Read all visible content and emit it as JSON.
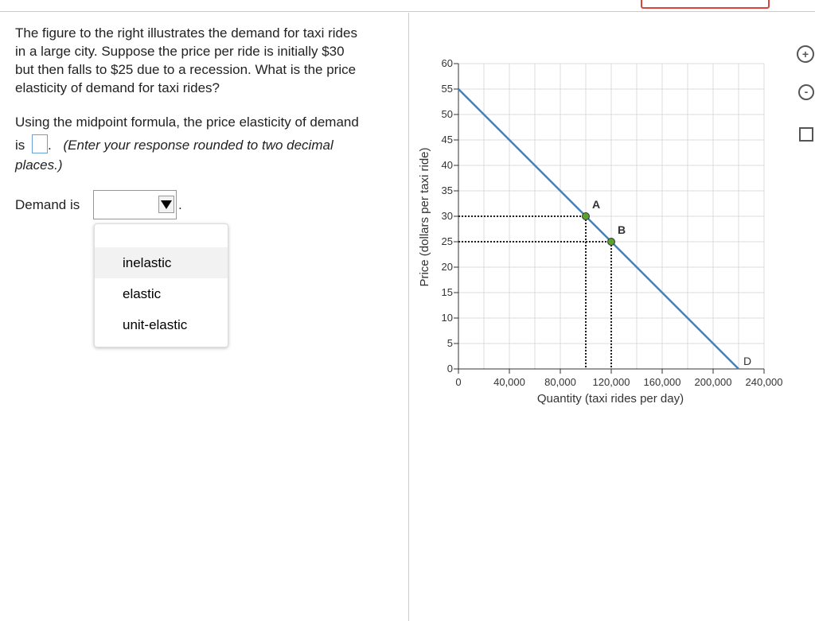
{
  "question": {
    "lines": [
      "The figure to the right illustrates the demand for taxi rides",
      "in a large city.  Suppose the price per ride is initially $30",
      "but then falls to $25 due to a recession.  What is the price",
      "elasticity of demand for taxi rides?"
    ],
    "part1_line1": "Using the midpoint formula, the price elasticity of demand",
    "part1_is": "is",
    "part1_period": ".",
    "instruction_line1": "(Enter your response rounded to two decimal",
    "instruction_line2": "places.)",
    "demand_label": "Demand is",
    "demand_period": ".",
    "dropdown_options": [
      "inelastic",
      "elastic",
      "unit-elastic"
    ]
  },
  "chart_data": {
    "type": "line",
    "xlabel": "Quantity (taxi rides per day)",
    "ylabel": "Price (dollars per taxi ride)",
    "xlim": [
      0,
      240000
    ],
    "ylim": [
      0,
      60
    ],
    "xticks": [
      0,
      {
        "value": 40000,
        "label": "40,000"
      },
      {
        "value": 80000,
        "label": "80,000"
      },
      {
        "value": 120000,
        "label": "120,000"
      },
      {
        "value": 160000,
        "label": "160,000"
      },
      {
        "value": 200000,
        "label": "200,000"
      },
      {
        "value": 240000,
        "label": "240,000"
      }
    ],
    "yticks": [
      0,
      5,
      10,
      15,
      20,
      25,
      30,
      35,
      40,
      45,
      50,
      55,
      60
    ],
    "grid": true,
    "series": [
      {
        "name": "D",
        "color": "#3d83c4",
        "x": [
          0,
          220000
        ],
        "values": [
          55,
          0
        ]
      }
    ],
    "points": [
      {
        "label": "A",
        "x": 100000,
        "y": 30
      },
      {
        "label": "B",
        "x": 120000,
        "y": 25
      }
    ],
    "point_color": "#5aa02c"
  }
}
